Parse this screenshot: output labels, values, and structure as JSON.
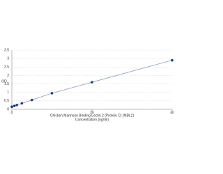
{
  "chart_data": {
    "type": "scatter",
    "x_label": "Chicken Mannose Binding Lectin 2 (Protein C) (MBL2)",
    "x_label_2": "Concentration (ng/ml)",
    "y_label": "OD",
    "x": [
      0,
      0.625,
      1.25,
      2.5,
      5,
      10,
      20,
      40
    ],
    "values": [
      0.15,
      0.2,
      0.25,
      0.35,
      0.55,
      0.95,
      1.6,
      2.9
    ],
    "color": "#1f3d7a",
    "line_color": "#7f8fb0",
    "fit_line": true,
    "xlim": [
      0,
      40
    ],
    "xticks": [
      0,
      20,
      40
    ],
    "ylim": [
      0,
      3.5
    ],
    "yticks": [
      0,
      0.5,
      1,
      1.5,
      2,
      2.5,
      3,
      3.5
    ],
    "grid": true
  }
}
